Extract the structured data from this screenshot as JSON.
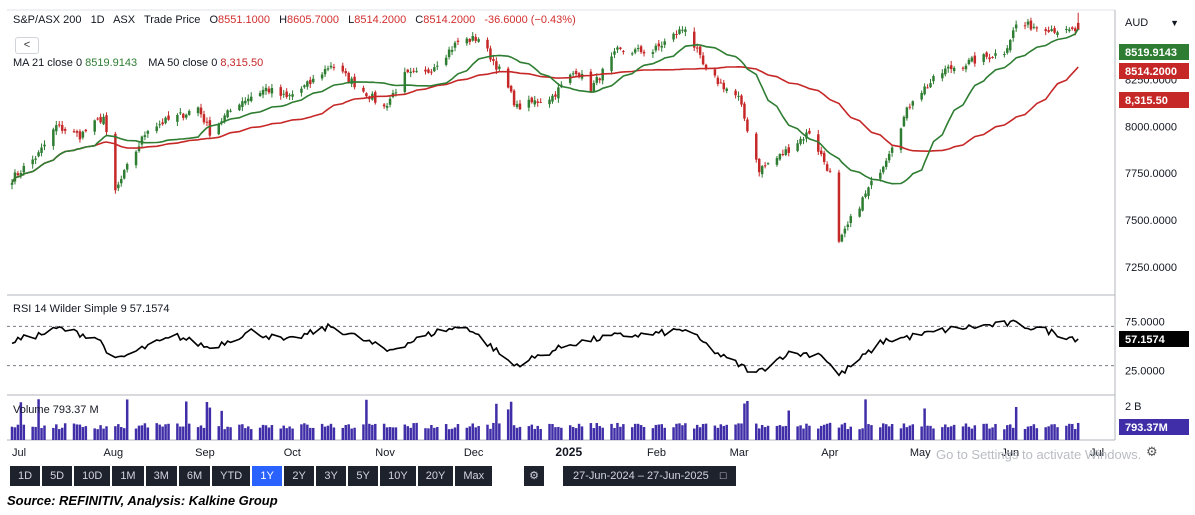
{
  "header": {
    "symbol": "S&P/ASX 200",
    "interval": "1D",
    "exchange": "ASX",
    "type": "Trade Price",
    "open_label": "O",
    "open": "8551.1000",
    "high_label": "H",
    "high": "8605.7000",
    "low_label": "L",
    "low": "8514.2000",
    "close_label": "C",
    "close": "8514.2000",
    "change": "-36.6000 (−0.43%)"
  },
  "back_label": "<",
  "ma_legend": {
    "ma21_label": "MA 21 close 0",
    "ma21_value": "8519.9143",
    "ma50_label": "MA 50 close 0",
    "ma50_value": "8,315.50"
  },
  "rsi_legend": {
    "label": "RSI 14 Wilder Simple 9",
    "value": "57.1574"
  },
  "volume_legend": {
    "label": "Volume",
    "value": "793.37 M"
  },
  "currency": "AUD",
  "price_axis": {
    "ticks": [
      "8250.0000",
      "8000.0000",
      "7750.0000",
      "7500.0000",
      "7250.0000"
    ],
    "badges": {
      "ma21": "8519.9143",
      "close": "8514.2000",
      "ma50": "8,315.50"
    }
  },
  "rsi_axis": {
    "ticks": [
      "75.0000",
      "25.0000"
    ],
    "badge": "57.1574"
  },
  "volume_axis": {
    "tick": "2 B",
    "badge": "793.37M"
  },
  "x_axis": {
    "labels": [
      "Jul",
      "Aug",
      "Sep",
      "Oct",
      "Nov",
      "Dec",
      "2025",
      "Feb",
      "Mar",
      "Apr",
      "May",
      "Jun",
      "Jul"
    ]
  },
  "toolbar": {
    "timeframes": [
      "1D",
      "5D",
      "10D",
      "1M",
      "3M",
      "6M",
      "YTD",
      "1Y",
      "2Y",
      "3Y",
      "5Y",
      "10Y",
      "20Y",
      "Max"
    ],
    "active": "1Y",
    "date_range": "27-Jun-2024  –  27-Jun-2025"
  },
  "watermark": "Go to Settings to activate Windows.",
  "source": "Source: REFINITIV, Analysis: Kalkine Group",
  "colors": {
    "up": "#2e7d32",
    "down": "#c62828",
    "ma21": "#2e7d32",
    "ma50": "#c62828",
    "volume": "#3f2ea8",
    "rsi": "#000000"
  },
  "chart_data": {
    "type": "candlestick",
    "ylim": [
      7100,
      8620
    ],
    "anchors": [
      [
        "2024-07-01",
        7720
      ],
      [
        "2024-07-10",
        7850
      ],
      [
        "2024-07-16",
        8000
      ],
      [
        "2024-07-24",
        7950
      ],
      [
        "2024-08-01",
        8050
      ],
      [
        "2024-08-05",
        7650
      ],
      [
        "2024-08-09",
        7780
      ],
      [
        "2024-08-16",
        7990
      ],
      [
        "2024-08-26",
        8050
      ],
      [
        "2024-09-02",
        8100
      ],
      [
        "2024-09-06",
        7970
      ],
      [
        "2024-09-16",
        8130
      ],
      [
        "2024-09-25",
        8200
      ],
      [
        "2024-10-02",
        8150
      ],
      [
        "2024-10-10",
        8230
      ],
      [
        "2024-10-17",
        8330
      ],
      [
        "2024-10-24",
        8240
      ],
      [
        "2024-11-04",
        8100
      ],
      [
        "2024-11-11",
        8270
      ],
      [
        "2024-11-18",
        8280
      ],
      [
        "2024-11-29",
        8450
      ],
      [
        "2024-12-06",
        8470
      ],
      [
        "2024-12-13",
        8300
      ],
      [
        "2024-12-19",
        8100
      ],
      [
        "2024-12-31",
        8160
      ],
      [
        "2025-01-08",
        8300
      ],
      [
        "2025-01-13",
        8200
      ],
      [
        "2025-01-22",
        8400
      ],
      [
        "2025-02-03",
        8400
      ],
      [
        "2025-02-14",
        8530
      ],
      [
        "2025-02-21",
        8290
      ],
      [
        "2025-03-04",
        8150
      ],
      [
        "2025-03-11",
        7770
      ],
      [
        "2025-03-18",
        7840
      ],
      [
        "2025-03-28",
        7970
      ],
      [
        "2025-04-04",
        7750
      ],
      [
        "2025-04-07",
        7370
      ],
      [
        "2025-04-11",
        7500
      ],
      [
        "2025-04-22",
        7800
      ],
      [
        "2025-05-02",
        8150
      ],
      [
        "2025-05-13",
        8300
      ],
      [
        "2025-05-23",
        8350
      ],
      [
        "2025-06-02",
        8400
      ],
      [
        "2025-06-06",
        8540
      ],
      [
        "2025-06-16",
        8530
      ],
      [
        "2025-06-23",
        8500
      ],
      [
        "2025-06-27",
        8514
      ]
    ],
    "ma21": {
      "name": "MA 21 close 0",
      "last": 8519.9143
    },
    "ma50": {
      "name": "MA 50 close 0",
      "last": 8315.5
    },
    "rsi": {
      "name": "RSI 14 Wilder Simple 9",
      "ylim": [
        0,
        100
      ],
      "guides": [
        70,
        30
      ],
      "last": 57.1574,
      "anchors": [
        [
          "2024-07-01",
          55
        ],
        [
          "2024-07-11",
          62
        ],
        [
          "2024-07-17",
          68
        ],
        [
          "2024-07-30",
          58
        ],
        [
          "2024-08-05",
          35
        ],
        [
          "2024-08-16",
          50
        ],
        [
          "2024-08-26",
          60
        ],
        [
          "2024-09-06",
          48
        ],
        [
          "2024-09-20",
          65
        ],
        [
          "2024-10-02",
          55
        ],
        [
          "2024-10-17",
          70
        ],
        [
          "2024-10-29",
          55
        ],
        [
          "2024-11-05",
          45
        ],
        [
          "2024-11-22",
          65
        ],
        [
          "2024-12-02",
          70
        ],
        [
          "2024-12-18",
          30
        ],
        [
          "2025-01-06",
          52
        ],
        [
          "2025-01-20",
          60
        ],
        [
          "2025-02-03",
          62
        ],
        [
          "2025-02-14",
          67
        ],
        [
          "2025-02-26",
          40
        ],
        [
          "2025-03-10",
          22
        ],
        [
          "2025-03-20",
          42
        ],
        [
          "2025-04-01",
          42
        ],
        [
          "2025-04-07",
          20
        ],
        [
          "2025-04-22",
          55
        ],
        [
          "2025-05-02",
          60
        ],
        [
          "2025-05-16",
          68
        ],
        [
          "2025-06-05",
          73
        ],
        [
          "2025-06-16",
          66
        ],
        [
          "2025-06-23",
          60
        ],
        [
          "2025-06-27",
          57.16
        ]
      ]
    },
    "volume": {
      "name": "Volume",
      "last": "793.37 M",
      "scale_max": 2000
    }
  }
}
